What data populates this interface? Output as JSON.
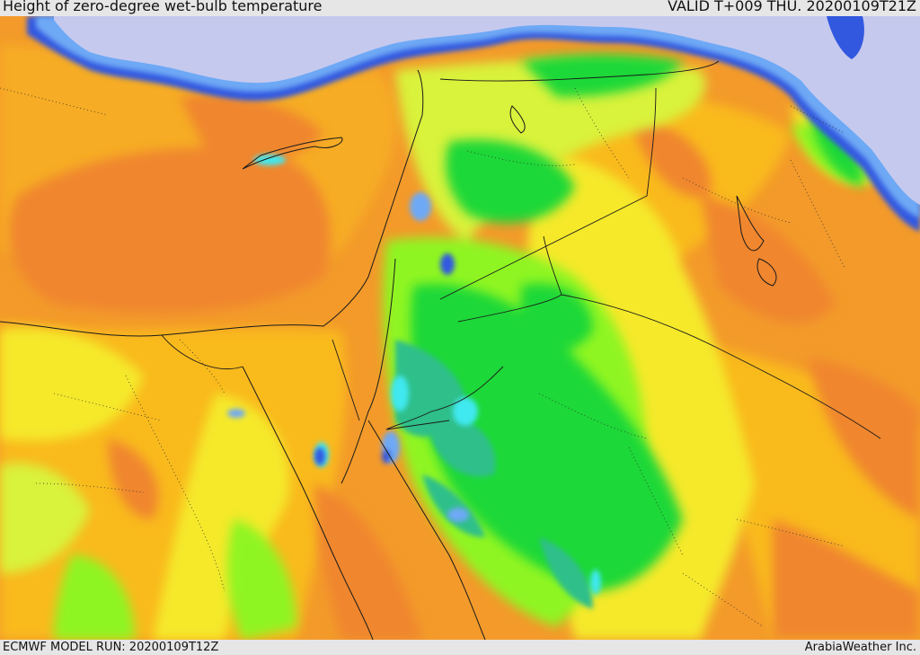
{
  "header": {
    "title": "Height of zero-degree wet-bulb temperature",
    "valid": "VALID T+009 THU. 20200109T21Z"
  },
  "footer": {
    "model_run": "ECMWF MODEL RUN: 20200109T12Z",
    "credit": "ArabiaWeather Inc."
  },
  "colors": {
    "sea_cold": "#c6c9ee",
    "deep_blue": "#3358e0",
    "light_blue": "#6ea9f5",
    "cyan": "#3fe8f0",
    "teal": "#2fbf8a",
    "green": "#1ed838",
    "light_green": "#8ff520",
    "yellow_green": "#d9f23a",
    "yellow": "#f5e92a",
    "orange_light": "#f9ba1c",
    "orange": "#f39a2a",
    "dark_orange": "#f0862e"
  }
}
